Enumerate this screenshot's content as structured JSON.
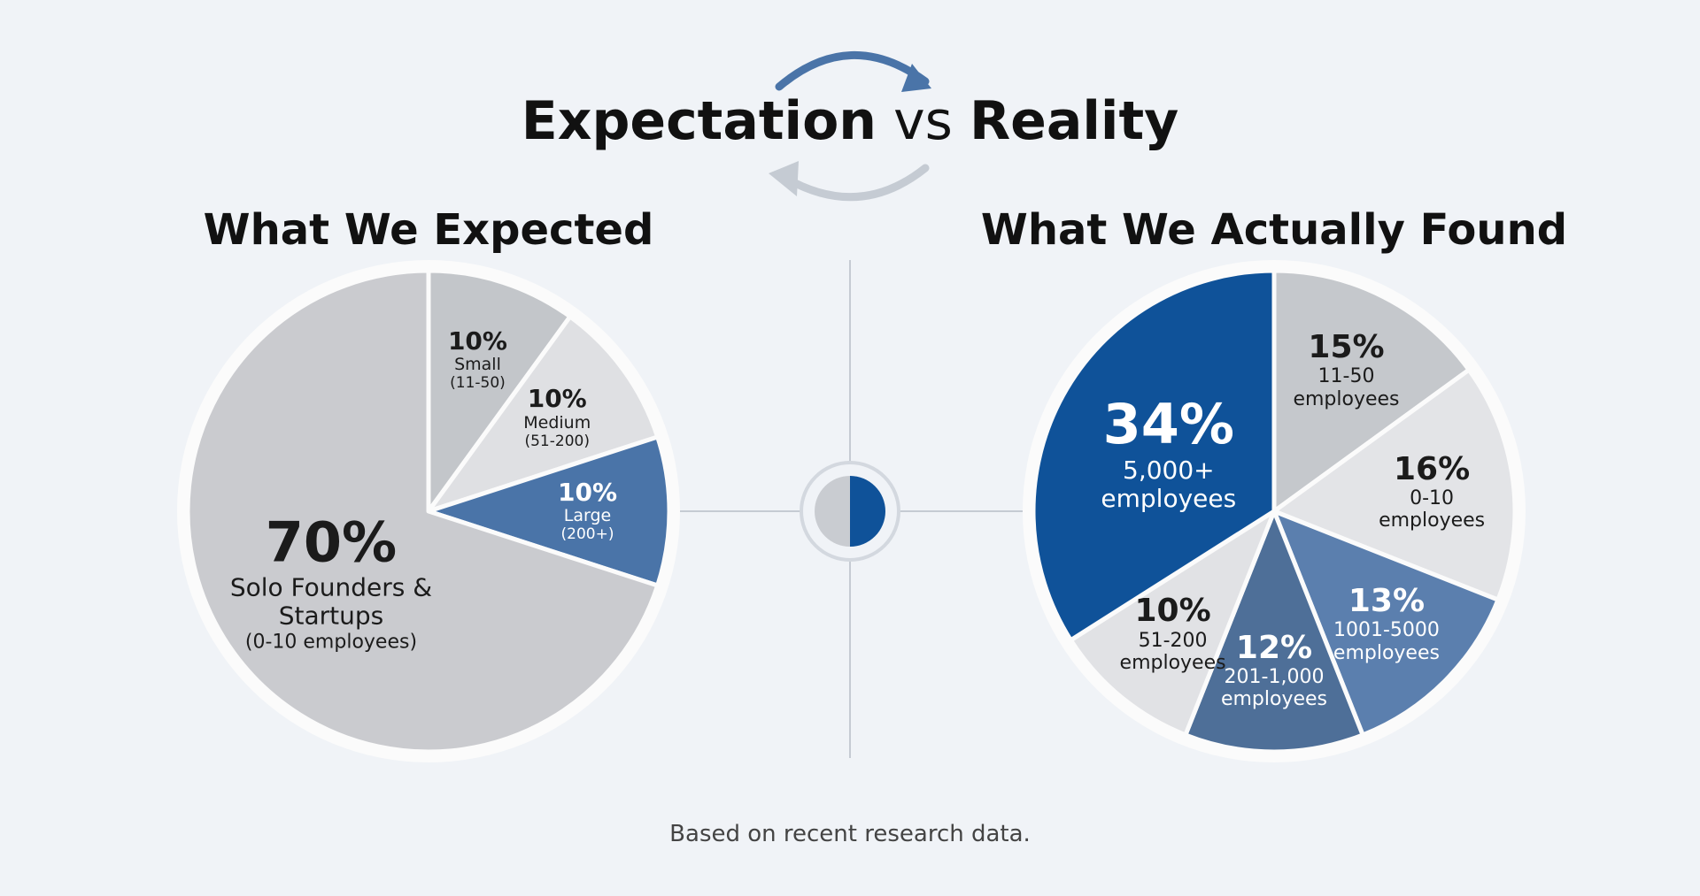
{
  "title_parts": [
    "Expectation",
    "vs",
    "Reality"
  ],
  "footnote": "Based on recent research data.",
  "chart_data": [
    {
      "type": "pie",
      "title": "What We Expected",
      "categories": [
        "Small",
        "Medium",
        "Large",
        "Solo Founders & Startups"
      ],
      "details": [
        "(11-50)",
        "(51-200)",
        "(200+)",
        "(0-10 employees)"
      ],
      "values": [
        10,
        10,
        10,
        70
      ],
      "value_labels": [
        "10%",
        "10%",
        "10%",
        "70%"
      ],
      "colors": [
        "#c3c6ca",
        "#dfe0e3",
        "#4a74a8",
        "#cacbcf"
      ]
    },
    {
      "type": "pie",
      "title": "What We Actually Found",
      "categories": [
        "11-50 employees",
        "0-10 employees",
        "1001-5000 employees",
        "201-1,000 employees",
        "51-200 employees",
        "5,000+ employees"
      ],
      "values": [
        15,
        16,
        13,
        12,
        10,
        34
      ],
      "value_labels": [
        "15%",
        "16%",
        "13%",
        "12%",
        "10%",
        "34%"
      ],
      "colors": [
        "#c5c8cc",
        "#e3e4e7",
        "#5b7fae",
        "#4e6f98",
        "#e1e2e5",
        "#0f5299"
      ]
    }
  ]
}
